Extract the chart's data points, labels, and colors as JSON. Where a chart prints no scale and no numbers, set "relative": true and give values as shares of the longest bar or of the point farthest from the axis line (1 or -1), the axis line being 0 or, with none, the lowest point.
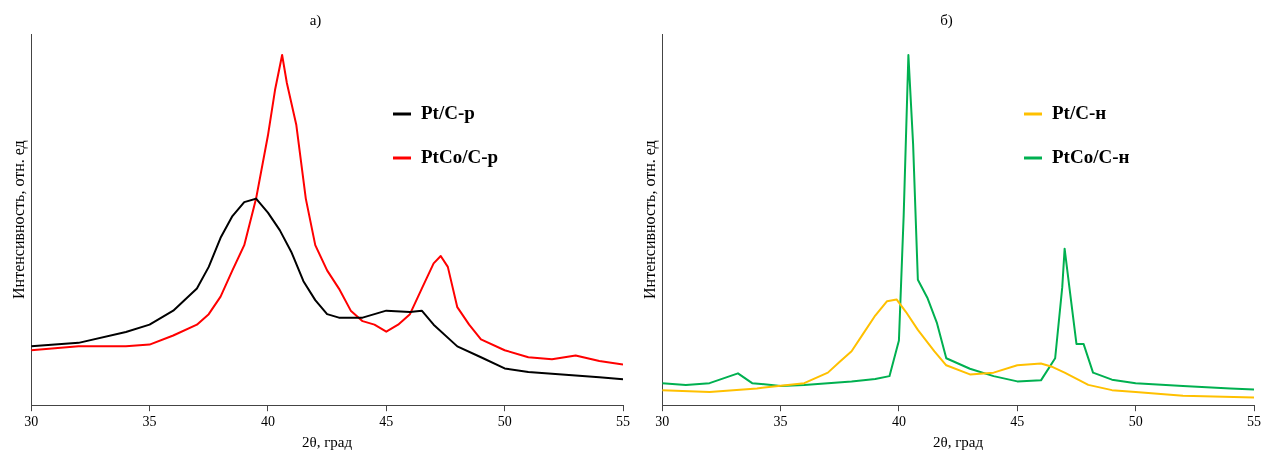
{
  "chart_data": [
    {
      "type": "line",
      "title": "а)",
      "xlabel": "2θ, град",
      "ylabel": "Интенсивность, отн. ед",
      "relative": true,
      "xlim": [
        30,
        55
      ],
      "xticks": [
        30,
        35,
        40,
        45,
        50,
        55
      ],
      "grid": false,
      "legend": "top right",
      "marker": "none",
      "series": [
        {
          "name": "Pt/C-p",
          "color": "#000000",
          "x": [
            30,
            32,
            34,
            35,
            36,
            37,
            37.5,
            38,
            38.5,
            39,
            39.5,
            40,
            40.5,
            41,
            41.5,
            42,
            42.5,
            43,
            44,
            45,
            46,
            46.5,
            47,
            48,
            49,
            50,
            51,
            52,
            53,
            54,
            55
          ],
          "values": [
            0.168,
            0.178,
            0.209,
            0.23,
            0.27,
            0.333,
            0.395,
            0.478,
            0.54,
            0.58,
            0.59,
            0.55,
            0.5,
            0.436,
            0.354,
            0.3,
            0.26,
            0.25,
            0.25,
            0.27,
            0.266,
            0.27,
            0.23,
            0.168,
            0.137,
            0.105,
            0.095,
            0.09,
            0.085,
            0.08,
            0.074
          ]
        },
        {
          "name": "PtCo/C-p",
          "color": "#ff0000",
          "x": [
            30,
            32,
            34,
            35,
            36,
            37,
            37.5,
            38,
            38.5,
            39,
            39.5,
            40,
            40.3,
            40.6,
            40.8,
            41.2,
            41.6,
            42,
            42.5,
            43,
            43.5,
            44,
            44.5,
            45,
            45.5,
            46,
            46.5,
            47,
            47.3,
            47.6,
            48,
            48.5,
            49,
            50,
            51,
            52,
            53,
            54,
            55
          ],
          "values": [
            0.157,
            0.168,
            0.168,
            0.173,
            0.199,
            0.23,
            0.26,
            0.31,
            0.385,
            0.457,
            0.59,
            0.77,
            0.9,
            1,
            0.92,
            0.8,
            0.59,
            0.457,
            0.385,
            0.333,
            0.27,
            0.24,
            0.23,
            0.21,
            0.23,
            0.26,
            0.333,
            0.405,
            0.426,
            0.395,
            0.28,
            0.23,
            0.188,
            0.157,
            0.137,
            0.131,
            0.142,
            0.126,
            0.116
          ]
        }
      ]
    },
    {
      "type": "line",
      "title": "б)",
      "xlabel": "2θ, град",
      "ylabel": "Интенсивность, отн. ед",
      "relative": true,
      "xlim": [
        30,
        55
      ],
      "xticks": [
        30,
        35,
        40,
        45,
        50,
        55
      ],
      "grid": false,
      "legend": "top right",
      "marker": "none",
      "series": [
        {
          "name": "Pt/C-н",
          "color": "#ffc000",
          "x": [
            30,
            32,
            34,
            36,
            37,
            37.5,
            38,
            38.5,
            39,
            39.5,
            39.9,
            40.3,
            40.8,
            41.5,
            42,
            43,
            44,
            45,
            46,
            46.5,
            47,
            48,
            49,
            50,
            52,
            55
          ],
          "values": [
            0.043,
            0.038,
            0.048,
            0.063,
            0.093,
            0.124,
            0.154,
            0.205,
            0.256,
            0.297,
            0.302,
            0.266,
            0.215,
            0.154,
            0.114,
            0.088,
            0.093,
            0.114,
            0.119,
            0.109,
            0.093,
            0.058,
            0.043,
            0.038,
            0.027,
            0.022
          ]
        },
        {
          "name": "PtCo/C-н",
          "color": "#00b050",
          "x": [
            30,
            31,
            32,
            33.2,
            33.8,
            35,
            36,
            37,
            38,
            39,
            39.6,
            40,
            40.2,
            40.4,
            40.6,
            40.8,
            41.2,
            41.6,
            42,
            43,
            44,
            45,
            46,
            46.6,
            46.9,
            47,
            47.2,
            47.5,
            47.8,
            48.2,
            49,
            50,
            52,
            54,
            55
          ],
          "values": [
            0.063,
            0.058,
            0.063,
            0.091,
            0.063,
            0.055,
            0.058,
            0.063,
            0.068,
            0.075,
            0.083,
            0.185,
            0.54,
            1,
            0.744,
            0.358,
            0.307,
            0.236,
            0.134,
            0.104,
            0.083,
            0.068,
            0.071,
            0.134,
            0.337,
            0.447,
            0.337,
            0.175,
            0.175,
            0.093,
            0.073,
            0.063,
            0.055,
            0.048,
            0.045
          ]
        }
      ]
    }
  ]
}
